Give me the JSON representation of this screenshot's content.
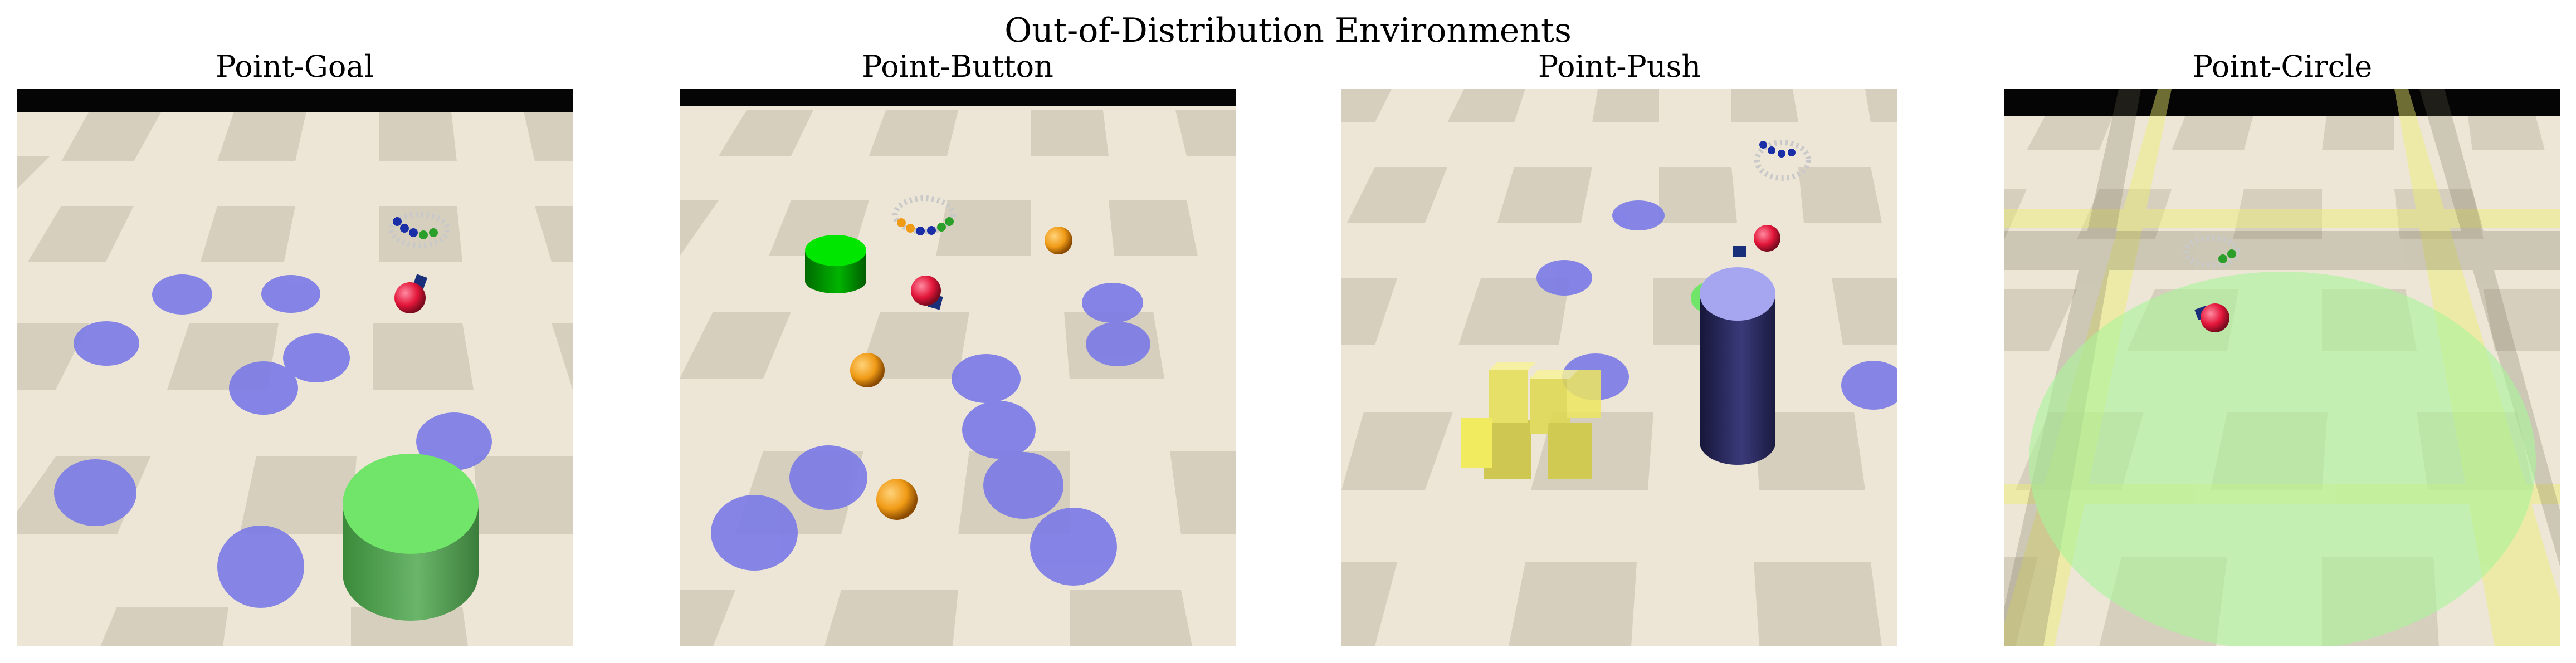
{
  "figure": {
    "title": "Out-of-Distribution Environments"
  },
  "panels": [
    {
      "title": "Point-Goal"
    },
    {
      "title": "Point-Button"
    },
    {
      "title": "Point-Push"
    },
    {
      "title": "Point-Circle"
    }
  ],
  "colors": {
    "floor_light": "#ede6d6",
    "floor_dark": "#d7cfbd",
    "sky": "#050505",
    "hazard": "#7a7ae8",
    "goal": "#71e56a",
    "button": "#00e600",
    "gremlin": "#f09b16",
    "robot": "#e3163a",
    "pillar": "#24244f",
    "push_box": "#f2ec4c",
    "circle_zone": "#a9f59a",
    "boundary": "#eded6e"
  }
}
